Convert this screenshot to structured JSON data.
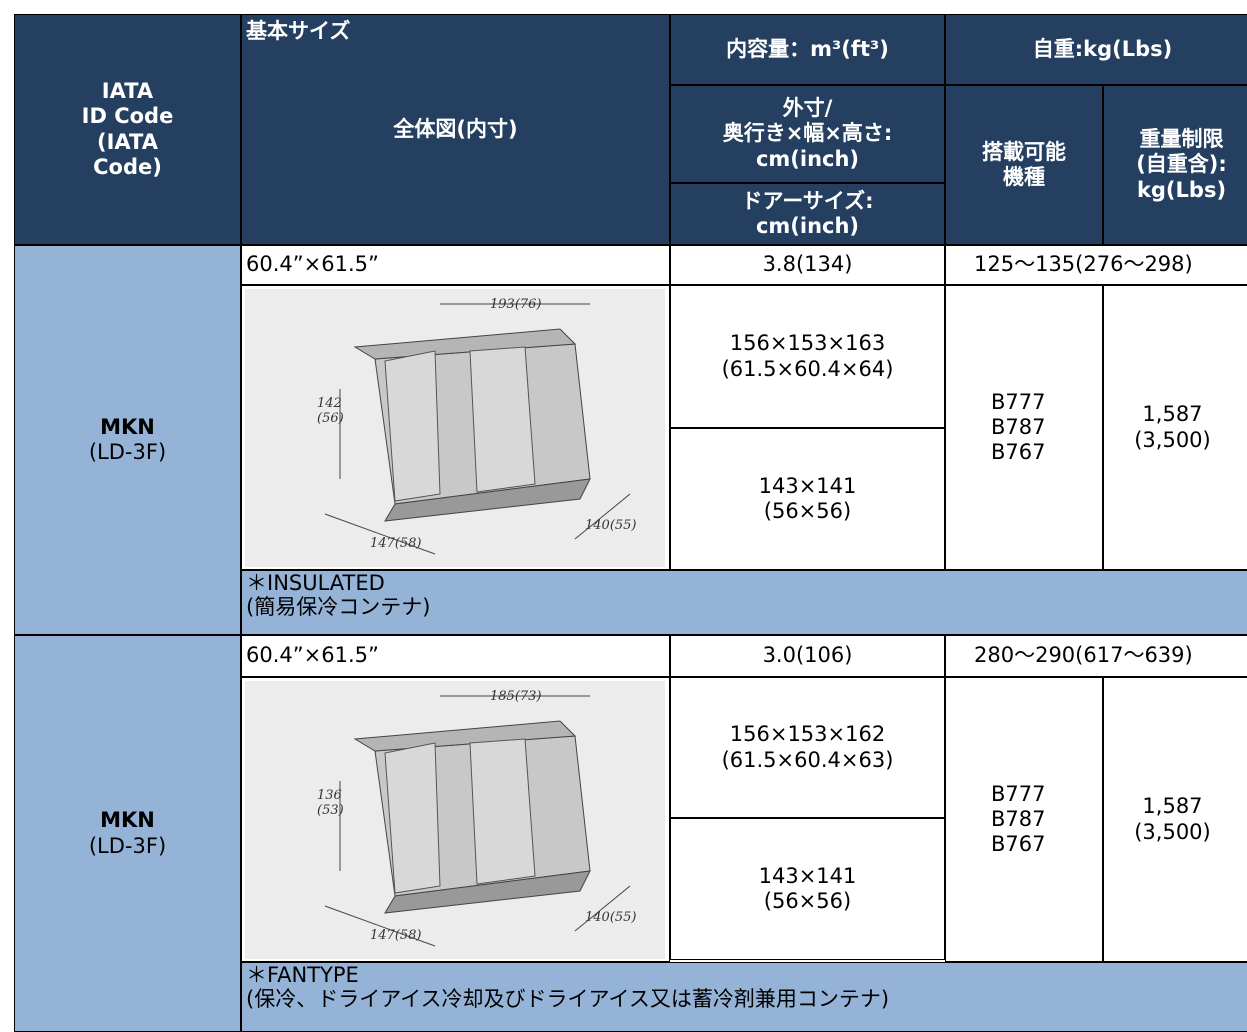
{
  "header": {
    "iata": "IATA\nID Code\n(IATA\nCode)",
    "basic_size": "基本サイズ",
    "overview": "全体図(内寸)",
    "capacity": "内容量：m³(ft³)",
    "tare": "自重:kg(Lbs)",
    "outer": "外寸/\n奥行き×幅×高さ:\ncm(inch)",
    "door": "ドアーサイズ:\ncm(inch)",
    "aircraft": "搭載可能\n機種",
    "weight_limit": "重量制限\n(自重含):\nkg(Lbs)"
  },
  "rows": [
    {
      "code": "MKN",
      "subcode": "(LD-3F)",
      "base_size": "60.4”×61.5”",
      "capacity": "3.8(134)",
      "tare": "125〜135(276〜298)",
      "drawing": {
        "width": "193(76)",
        "height": "142\n(56)",
        "depth": "147(58)",
        "side": "140(55)"
      },
      "outer": "156×153×163\n(61.5×60.4×64)",
      "door": "143×141\n(56×56)",
      "aircraft": "B777\nB787\nB767",
      "weight_limit": "1,587\n(3,500)",
      "note": "＊INSULATED\n(簡易保冷コンテナ)"
    },
    {
      "code": "MKN",
      "subcode": "(LD-3F)",
      "base_size": "60.4”×61.5”",
      "capacity": "3.0(106)",
      "tare": "280〜290(617〜639)",
      "drawing": {
        "width": "185(73)",
        "height": "136\n(53)",
        "depth": "147(58)",
        "side": "140(55)"
      },
      "outer": "156×153×162\n(61.5×60.4×63)",
      "door": "143×141\n(56×56)",
      "aircraft": "B777\nB787\nB767",
      "weight_limit": "1,587\n(3,500)",
      "note": "＊FANTYPE\n(保冷、ドライアイス冷却及びドライアイス又は蓄冷剤兼用コンテナ)"
    }
  ]
}
